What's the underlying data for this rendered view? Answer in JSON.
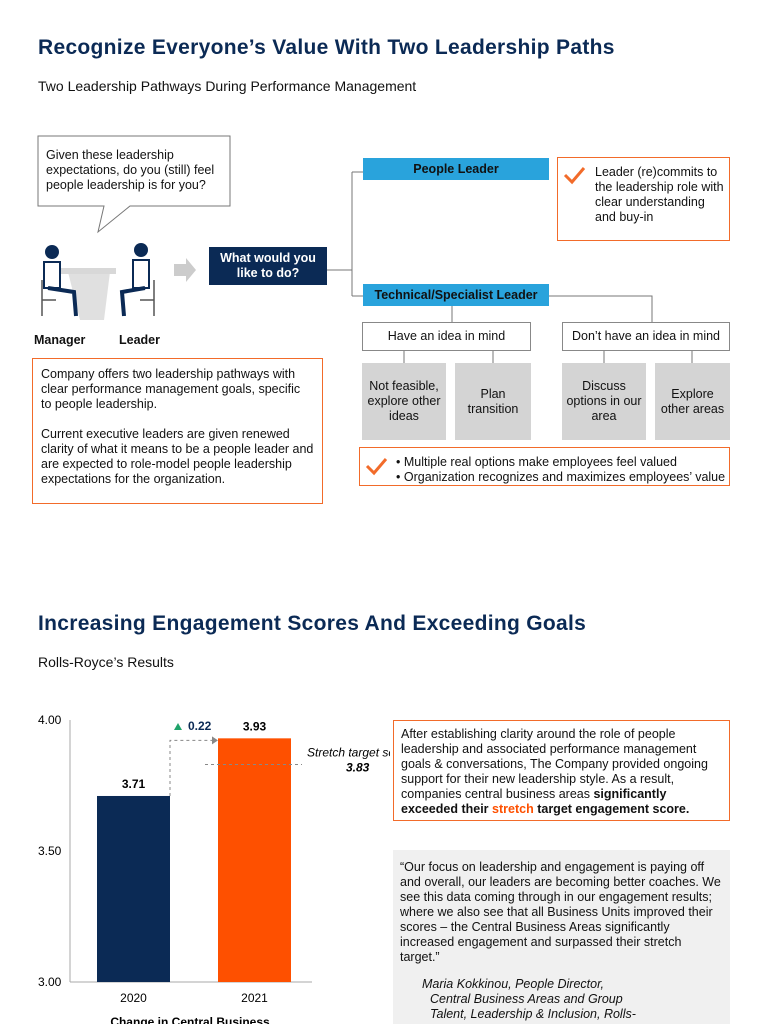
{
  "section1": {
    "title": "Recognize Everyone’s Value With Two Leadership Paths",
    "subtitle": "Two Leadership Pathways During Performance Management",
    "speech_bubble": "Given these leadership expectations, do you (still) feel people leadership is for you?",
    "people": [
      "Manager",
      "Leader"
    ],
    "question": "What would you like to do?",
    "paths": [
      {
        "label": "People Leader",
        "outcome": "Leader (re)commits to the leadership role with clear understanding and buy-in"
      },
      {
        "label": "Technical/Specialist Leader"
      }
    ],
    "branches": [
      {
        "label": "Have an idea in mind",
        "options": [
          "Not feasible, explore other ideas",
          "Plan transition"
        ]
      },
      {
        "label": "Don’t have an idea in mind",
        "options": [
          "Discuss options in our area",
          "Explore other areas"
        ]
      }
    ],
    "benefits": [
      "Multiple real options make employees feel valued",
      "Organization recognizes and maximizes employees’ value"
    ],
    "description": [
      "Company offers two leadership pathways with clear performance management goals, specific to people leadership.",
      "Current executive leaders are given renewed clarity of what it means to be a people leader and are expected to role-model people leadership expectations for the organization."
    ]
  },
  "section2": {
    "title": "Increasing Engagement Scores And Exceeding Goals",
    "subtitle": "Rolls-Royce’s Results",
    "chart": {
      "type": "bar",
      "categories": [
        "2020",
        "2021"
      ],
      "values": [
        3.71,
        3.93
      ],
      "colors": [
        "#0b2a55",
        "#fe5000"
      ],
      "ylim": [
        3,
        4
      ],
      "yticks": [
        {
          "value": 3,
          "label": "3.00"
        },
        {
          "value": 3.5,
          "label": "3.50"
        },
        {
          "value": 4,
          "label": "4.00"
        }
      ],
      "difference": 0.22,
      "target_label": "Stretch target score:",
      "target": 3.83,
      "xlabel": "Change in Central Business"
    },
    "summary": {
      "text": "After establishing clarity around the role of people leadership and associated performance management goals & conversations, The Company provided ongoing support for their new leadership style. As a result, companies central business areas ",
      "bold": "significantly exceeded their",
      "highlight": "stretch",
      "bold_end": "target engagement score."
    },
    "quote": "“Our focus on leadership and engagement is paying off and overall, our leaders are becoming better coaches. We see this data coming through in our engagement results; where we also see that all Business Units improved their scores – the Central Business Areas significantly increased engagement and surpassed their stretch target.”",
    "attribution": [
      "Maria Kokkinou, People Director,",
      "Central Business Areas and Group",
      "Talent, Leadership & Inclusion, Rolls-"
    ]
  }
}
